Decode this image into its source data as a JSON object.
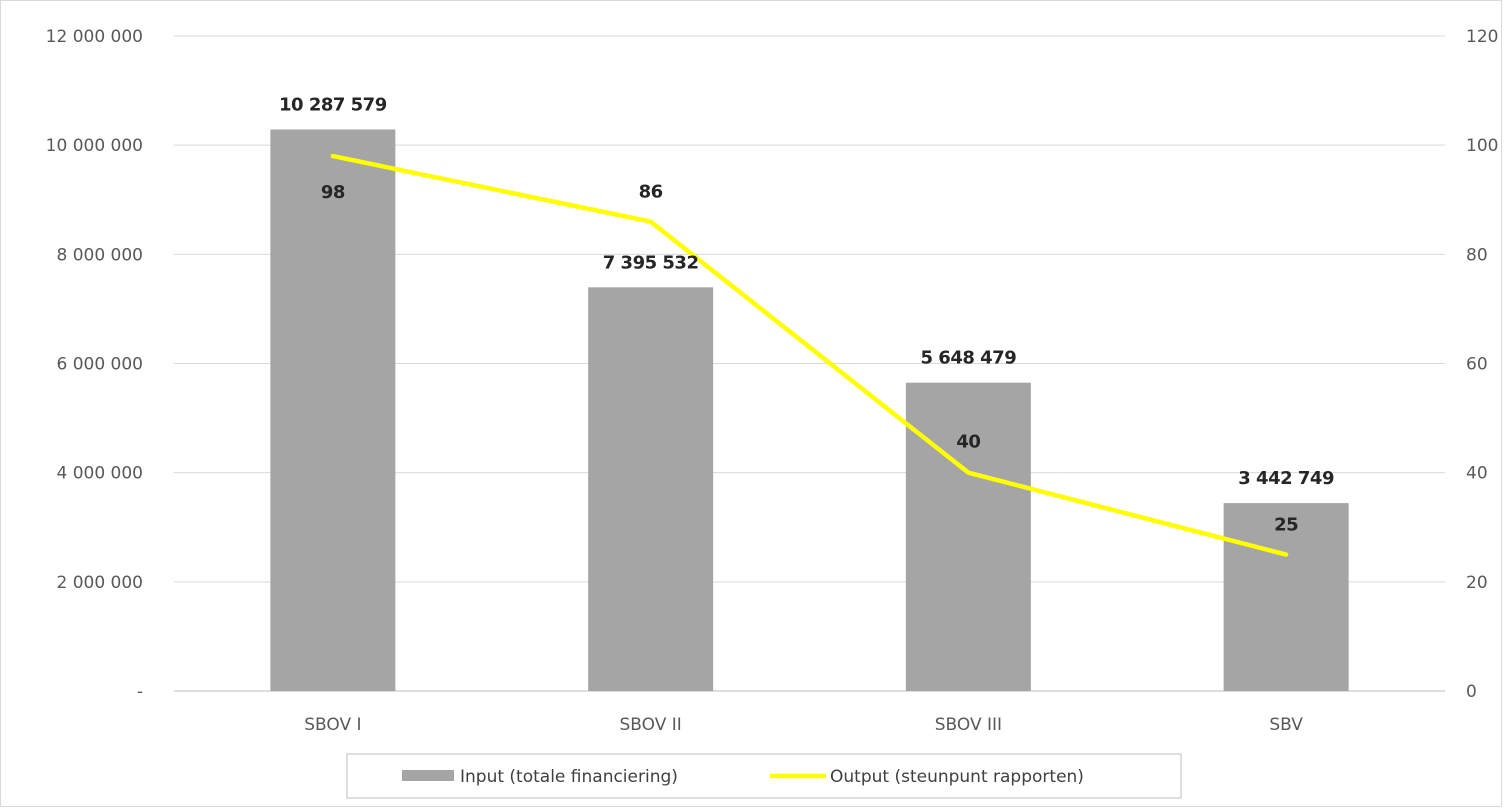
{
  "chart_data": {
    "type": "bar",
    "title": "",
    "xlabel": "",
    "ylabel": "",
    "categories": [
      "SBOV I",
      "SBOV II",
      "SBOV III",
      "SBV"
    ],
    "series": [
      {
        "name": "Input (totale financiering)",
        "type": "bar",
        "axis": "left",
        "color": "#a5a5a5",
        "values": [
          10287579,
          7395532,
          5648479,
          3442749
        ],
        "labels": [
          "10 287 579",
          "7 395 532",
          "5 648 479",
          "3 442 749"
        ]
      },
      {
        "name": "Output (steunpunt rapporten)",
        "type": "line",
        "axis": "right",
        "color": "#ffff00",
        "values": [
          98,
          86,
          40,
          25
        ],
        "labels": [
          "98",
          "86",
          "40",
          "25"
        ]
      }
    ],
    "ylim": [
      0,
      12000000
    ],
    "y_ticks": [
      0,
      2000000,
      4000000,
      6000000,
      8000000,
      10000000,
      12000000
    ],
    "y_tick_labels": [
      "-",
      "2 000 000",
      "4 000 000",
      "6 000 000",
      "8 000 000",
      "10 000 000",
      "12 000 000"
    ],
    "y2lim": [
      0,
      120
    ],
    "y2_ticks": [
      0,
      20,
      40,
      60,
      80,
      100,
      120
    ],
    "y2_tick_labels": [
      "0",
      "20",
      "40",
      "60",
      "80",
      "100",
      "120"
    ],
    "grid": true,
    "legend": "bottom"
  }
}
